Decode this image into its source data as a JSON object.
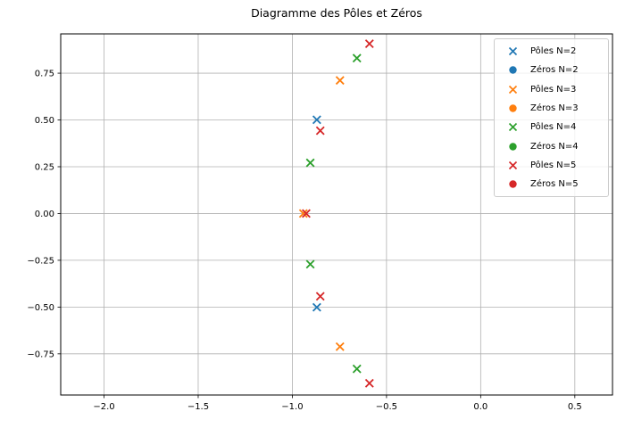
{
  "figure": {
    "title": "Diagramme des Pôles et Zéros"
  },
  "chart_data": {
    "type": "scatter",
    "title": "Diagramme des Pôles et Zéros",
    "xlabel": "",
    "ylabel": "",
    "xlim": [
      -2.23,
      0.7
    ],
    "ylim": [
      -0.97,
      0.96
    ],
    "grid": true,
    "legend_position": "upper right",
    "xticks": {
      "values": [
        -2.0,
        -1.5,
        -1.0,
        -0.5,
        0.0,
        0.5
      ],
      "labels": [
        "−2.0",
        "−1.5",
        "−1.0",
        "−0.5",
        "0.0",
        "0.5"
      ]
    },
    "yticks": {
      "values": [
        0.75,
        0.5,
        0.25,
        0.0,
        -0.25,
        -0.5,
        -0.75
      ],
      "labels": [
        "0.75",
        "0.50",
        "0.25",
        "0.00",
        "−0.25",
        "−0.50",
        "−0.75"
      ]
    },
    "series": [
      {
        "name": "Pôles N=2",
        "marker": "x",
        "color": "#1f77b4",
        "points": [
          [
            -0.87,
            0.5012
          ],
          [
            -0.87,
            -0.5012
          ]
        ]
      },
      {
        "name": "Zéros N=2",
        "marker": "o",
        "color": "#1f77b4",
        "points": []
      },
      {
        "name": "Pôles N=3",
        "marker": "x",
        "color": "#ff7f0e",
        "points": [
          [
            -0.7471,
            0.7115
          ],
          [
            -0.9416,
            0.0
          ],
          [
            -0.7471,
            -0.7115
          ]
        ]
      },
      {
        "name": "Zéros N=3",
        "marker": "o",
        "color": "#ff7f0e",
        "points": []
      },
      {
        "name": "Pôles N=4",
        "marker": "x",
        "color": "#2ca02c",
        "points": [
          [
            -0.6572,
            0.8302
          ],
          [
            -0.9047,
            0.2709
          ],
          [
            -0.9047,
            -0.2709
          ],
          [
            -0.6572,
            -0.8302
          ]
        ]
      },
      {
        "name": "Zéros N=4",
        "marker": "o",
        "color": "#2ca02c",
        "points": []
      },
      {
        "name": "Pôles N=5",
        "marker": "x",
        "color": "#d62728",
        "points": [
          [
            -0.5906,
            0.9072
          ],
          [
            -0.8516,
            0.4427
          ],
          [
            -0.9264,
            0.0
          ],
          [
            -0.8516,
            -0.4427
          ],
          [
            -0.5906,
            -0.9072
          ]
        ]
      },
      {
        "name": "Zéros N=5",
        "marker": "o",
        "color": "#d62728",
        "points": []
      }
    ],
    "colors": {
      "grid": "#b0b0b0",
      "spine": "#000000",
      "legend_border": "#cccccc"
    }
  }
}
